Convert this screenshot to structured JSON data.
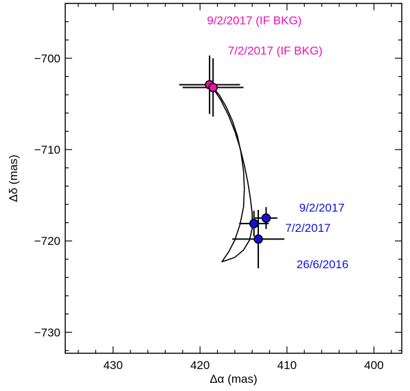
{
  "chart_data": {
    "type": "scatter",
    "title": "",
    "xlabel": "Δα (mas)",
    "ylabel": "Δδ (mas)",
    "xlim": [
      435.5,
      396.8
    ],
    "ylim": [
      -732.3,
      -694.0
    ],
    "x_ticks": [
      430,
      420,
      410,
      400
    ],
    "y_ticks": [
      -730,
      -720,
      -710,
      -700
    ],
    "x_tick_labels": [
      "430",
      "420",
      "410",
      "400"
    ],
    "y_tick_labels": [
      "−730",
      "−720",
      "−710",
      "−700"
    ],
    "x_minor_step": 2,
    "y_minor_step": 2,
    "grid": false,
    "series": [
      {
        "color": "#1010e0",
        "points": [
          {
            "x": 413.3,
            "y": -719.8,
            "xerr": 3.0,
            "yerr": 3.2
          },
          {
            "x": 413.8,
            "y": -718.1,
            "xerr": 1.7,
            "yerr": 1.4
          },
          {
            "x": 412.4,
            "y": -717.5,
            "xerr": 1.3,
            "yerr": 1.2
          }
        ]
      },
      {
        "color": "#ee10b0",
        "points": [
          {
            "x": 418.9,
            "y": -702.9,
            "xerr": 3.5,
            "yerr": 3.2
          },
          {
            "x": 418.5,
            "y": -703.2,
            "xerr": 3.5,
            "yerr": 3.2
          }
        ]
      }
    ],
    "tracks": [
      [
        [
          418.7,
          -703.0
        ],
        [
          417.8,
          -704.0
        ],
        [
          417.0,
          -705.3
        ],
        [
          416.3,
          -706.8
        ],
        [
          415.7,
          -708.5
        ],
        [
          415.3,
          -710.3
        ],
        [
          415.0,
          -712.3
        ],
        [
          414.9,
          -714.3
        ],
        [
          415.0,
          -716.3
        ],
        [
          415.4,
          -718.2
        ],
        [
          416.0,
          -719.9
        ],
        [
          416.7,
          -721.2
        ],
        [
          417.5,
          -722.3
        ]
      ],
      [
        [
          418.7,
          -703.0
        ],
        [
          417.6,
          -704.6
        ],
        [
          416.7,
          -706.3
        ],
        [
          416.0,
          -708.0
        ],
        [
          415.4,
          -709.8
        ],
        [
          414.9,
          -711.7
        ],
        [
          414.5,
          -713.6
        ],
        [
          414.2,
          -715.4
        ],
        [
          414.0,
          -717.0
        ],
        [
          414.0,
          -718.6
        ],
        [
          414.3,
          -719.9
        ],
        [
          415.0,
          -721.0
        ],
        [
          416.0,
          -721.8
        ],
        [
          417.5,
          -722.3
        ]
      ]
    ],
    "annotations": [
      {
        "text": "9/2/2017 (IF BKG)",
        "x": 419.2,
        "y": -696.3,
        "color": "#ee10b0"
      },
      {
        "text": "7/2/2017 (IF BKG)",
        "x": 416.8,
        "y": -699.6,
        "color": "#ee10b0"
      },
      {
        "text": "9/2/2017",
        "x": 408.6,
        "y": -716.8,
        "color": "#1010e0"
      },
      {
        "text": "7/2/2017",
        "x": 410.2,
        "y": -719.0,
        "color": "#1010e0"
      },
      {
        "text": "26/6/2016",
        "x": 408.9,
        "y": -723.0,
        "color": "#1010e0"
      }
    ]
  }
}
